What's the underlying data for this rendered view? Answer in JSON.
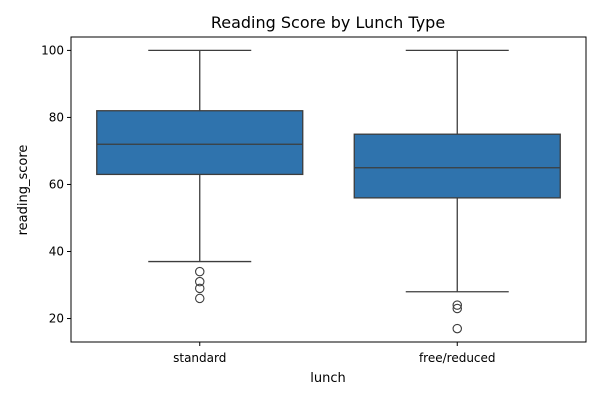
{
  "chart_data": {
    "type": "box",
    "title": "Reading Score by Lunch Type",
    "xlabel": "lunch",
    "ylabel": "reading_score",
    "categories": [
      "standard",
      "free/reduced"
    ],
    "ylim": [
      13,
      104
    ],
    "yticks": [
      20,
      40,
      60,
      80,
      100
    ],
    "grid": false,
    "box_color": "#2f73ad",
    "line_color": "#3d3d3d",
    "boxes": [
      {
        "category": "standard",
        "whisker_low": 37,
        "q1": 63,
        "median": 72,
        "q3": 82,
        "whisker_high": 100,
        "outliers": [
          34,
          31,
          29,
          26
        ]
      },
      {
        "category": "free/reduced",
        "whisker_low": 28,
        "q1": 56,
        "median": 65,
        "q3": 75,
        "whisker_high": 100,
        "outliers": [
          24,
          23,
          17
        ]
      }
    ]
  }
}
